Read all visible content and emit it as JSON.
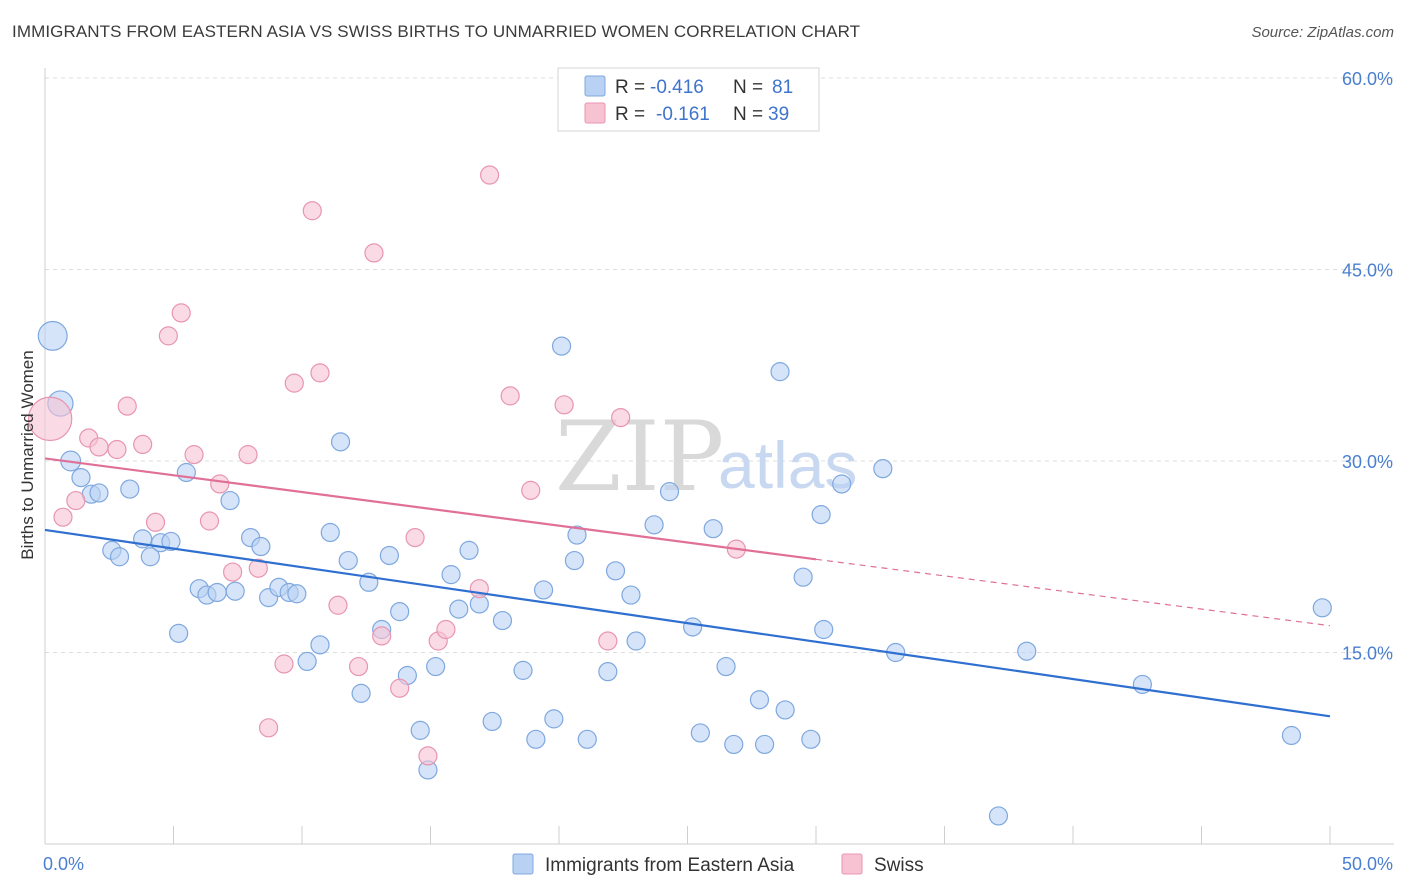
{
  "title": "IMMIGRANTS FROM EASTERN ASIA VS SWISS BIRTHS TO UNMARRIED WOMEN CORRELATION CHART",
  "source": "Source: ZipAtlas.com",
  "watermark": {
    "zip": "ZIP",
    "atlas": "atlas"
  },
  "colors": {
    "blue_fill": "#b9d2f3",
    "blue_stroke": "#7fa8df",
    "blue_line": "#2f6fd0",
    "pink_fill": "#f7c3d3",
    "pink_stroke": "#e895b0",
    "pink_line": "#e07098",
    "tick": "#4a7fd0",
    "grid": "#dddddd"
  },
  "legend": {
    "rows": [
      {
        "r_label": "R =",
        "r_value": "-0.416",
        "n_label": "N =",
        "n_value": "81"
      },
      {
        "r_label": "R =",
        "r_value": "-0.161",
        "n_label": "N =",
        "n_value": "39"
      }
    ]
  },
  "chart_data": {
    "type": "scatter",
    "title": "IMMIGRANTS FROM EASTERN ASIA VS SWISS BIRTHS TO UNMARRIED WOMEN CORRELATION CHART",
    "xlabel": "",
    "ylabel": "Births to Unmarried Women",
    "xlim": [
      0,
      50
    ],
    "ylim": [
      0,
      63
    ],
    "x_tick_labels": [
      "0.0%",
      "50.0%"
    ],
    "y_ticks": [
      15,
      30,
      45,
      60
    ],
    "y_tick_labels": [
      "15.0%",
      "30.0%",
      "45.0%",
      "60.0%"
    ],
    "grid": true,
    "legend_position": "top-center",
    "series": [
      {
        "name": "Immigrants from Eastern Asia",
        "r": -0.416,
        "n": 81,
        "trend": {
          "x": [
            0,
            50
          ],
          "y": [
            24.6,
            10.0
          ],
          "dashed_to": null
        },
        "points": [
          [
            0.3,
            39.8,
            1.6
          ],
          [
            0.6,
            34.5,
            1.4
          ],
          [
            1.0,
            30.0,
            1.1
          ],
          [
            1.4,
            28.7,
            1
          ],
          [
            1.8,
            27.4,
            1
          ],
          [
            2.1,
            27.5,
            1
          ],
          [
            2.6,
            23.0,
            1
          ],
          [
            2.9,
            22.5,
            1
          ],
          [
            3.3,
            27.8,
            1
          ],
          [
            3.8,
            23.9,
            1
          ],
          [
            4.1,
            22.5,
            1
          ],
          [
            4.5,
            23.6,
            1
          ],
          [
            4.9,
            23.7,
            1
          ],
          [
            5.2,
            16.5,
            1
          ],
          [
            5.5,
            29.1,
            1
          ],
          [
            6.0,
            20.0,
            1
          ],
          [
            6.3,
            19.5,
            1
          ],
          [
            6.7,
            19.7,
            1
          ],
          [
            7.2,
            26.9,
            1
          ],
          [
            7.4,
            19.8,
            1
          ],
          [
            8.0,
            24.0,
            1
          ],
          [
            8.4,
            23.3,
            1
          ],
          [
            8.7,
            19.3,
            1
          ],
          [
            9.1,
            20.1,
            1
          ],
          [
            9.5,
            19.7,
            1
          ],
          [
            9.8,
            19.6,
            1
          ],
          [
            10.2,
            14.3,
            1
          ],
          [
            10.7,
            15.6,
            1
          ],
          [
            11.1,
            24.4,
            1
          ],
          [
            11.5,
            31.5,
            1
          ],
          [
            11.8,
            22.2,
            1
          ],
          [
            12.3,
            11.8,
            1
          ],
          [
            12.6,
            20.5,
            1
          ],
          [
            13.1,
            16.8,
            1
          ],
          [
            13.4,
            22.6,
            1
          ],
          [
            13.8,
            18.2,
            1
          ],
          [
            14.1,
            13.2,
            1
          ],
          [
            14.6,
            8.9,
            1
          ],
          [
            14.9,
            5.8,
            1
          ],
          [
            15.2,
            13.9,
            1
          ],
          [
            15.8,
            21.1,
            1
          ],
          [
            16.1,
            18.4,
            1
          ],
          [
            16.5,
            23.0,
            1
          ],
          [
            16.9,
            18.8,
            1
          ],
          [
            17.4,
            9.6,
            1
          ],
          [
            17.8,
            17.5,
            1
          ],
          [
            18.6,
            13.6,
            1
          ],
          [
            19.1,
            8.2,
            1
          ],
          [
            19.4,
            19.9,
            1
          ],
          [
            19.8,
            9.8,
            1
          ],
          [
            20.1,
            39.0,
            1
          ],
          [
            20.6,
            22.2,
            1
          ],
          [
            20.7,
            24.2,
            1
          ],
          [
            21.1,
            8.2,
            1
          ],
          [
            21.9,
            13.5,
            1
          ],
          [
            22.2,
            21.4,
            1
          ],
          [
            22.8,
            19.5,
            1
          ],
          [
            23.0,
            15.9,
            1
          ],
          [
            23.7,
            25.0,
            1
          ],
          [
            24.3,
            27.6,
            1
          ],
          [
            25.2,
            17.0,
            1
          ],
          [
            25.5,
            8.7,
            1
          ],
          [
            26.0,
            24.7,
            1
          ],
          [
            26.5,
            13.9,
            1
          ],
          [
            26.8,
            7.8,
            1
          ],
          [
            27.8,
            11.3,
            1
          ],
          [
            28.0,
            7.8,
            1
          ],
          [
            28.6,
            37.0,
            1
          ],
          [
            28.8,
            10.5,
            1
          ],
          [
            29.5,
            20.9,
            1
          ],
          [
            29.8,
            8.2,
            1
          ],
          [
            30.2,
            25.8,
            1
          ],
          [
            30.3,
            16.8,
            1
          ],
          [
            31.0,
            28.2,
            1
          ],
          [
            32.6,
            29.4,
            1
          ],
          [
            33.1,
            15.0,
            1
          ],
          [
            37.1,
            2.2,
            1
          ],
          [
            38.2,
            15.1,
            1
          ],
          [
            42.7,
            12.5,
            1
          ],
          [
            48.5,
            8.5,
            1
          ],
          [
            49.7,
            18.5,
            1
          ]
        ]
      },
      {
        "name": "Swiss",
        "r": -0.161,
        "n": 39,
        "trend": {
          "x": [
            0,
            30
          ],
          "y": [
            30.2,
            22.3
          ],
          "dashed_to": [
            50,
            17.1
          ]
        },
        "points": [
          [
            0.2,
            33.3,
            2.4
          ],
          [
            0.7,
            25.6,
            1
          ],
          [
            1.2,
            26.9,
            1
          ],
          [
            1.7,
            31.8,
            1
          ],
          [
            2.1,
            31.1,
            1
          ],
          [
            2.8,
            30.9,
            1
          ],
          [
            3.2,
            34.3,
            1
          ],
          [
            3.8,
            31.3,
            1
          ],
          [
            4.3,
            25.2,
            1
          ],
          [
            4.8,
            39.8,
            1
          ],
          [
            5.3,
            41.6,
            1
          ],
          [
            5.8,
            30.5,
            1
          ],
          [
            6.4,
            25.3,
            1
          ],
          [
            6.8,
            28.2,
            1
          ],
          [
            7.3,
            21.3,
            1
          ],
          [
            7.9,
            30.5,
            1
          ],
          [
            8.3,
            21.6,
            1
          ],
          [
            8.7,
            9.1,
            1
          ],
          [
            9.3,
            14.1,
            1
          ],
          [
            9.7,
            36.1,
            1
          ],
          [
            10.4,
            49.6,
            1
          ],
          [
            10.7,
            36.9,
            1
          ],
          [
            11.4,
            18.7,
            1
          ],
          [
            12.2,
            13.9,
            1
          ],
          [
            12.8,
            46.3,
            1
          ],
          [
            13.1,
            16.3,
            1
          ],
          [
            13.8,
            12.2,
            1
          ],
          [
            14.4,
            24.0,
            1
          ],
          [
            14.9,
            6.9,
            1
          ],
          [
            15.3,
            15.9,
            1
          ],
          [
            15.6,
            16.8,
            1
          ],
          [
            16.9,
            20.0,
            1
          ],
          [
            17.3,
            52.4,
            1
          ],
          [
            18.1,
            35.1,
            1
          ],
          [
            18.9,
            27.7,
            1
          ],
          [
            20.2,
            34.4,
            1
          ],
          [
            21.9,
            15.9,
            1
          ],
          [
            22.4,
            33.4,
            1
          ],
          [
            26.9,
            23.1,
            1
          ]
        ]
      }
    ]
  }
}
